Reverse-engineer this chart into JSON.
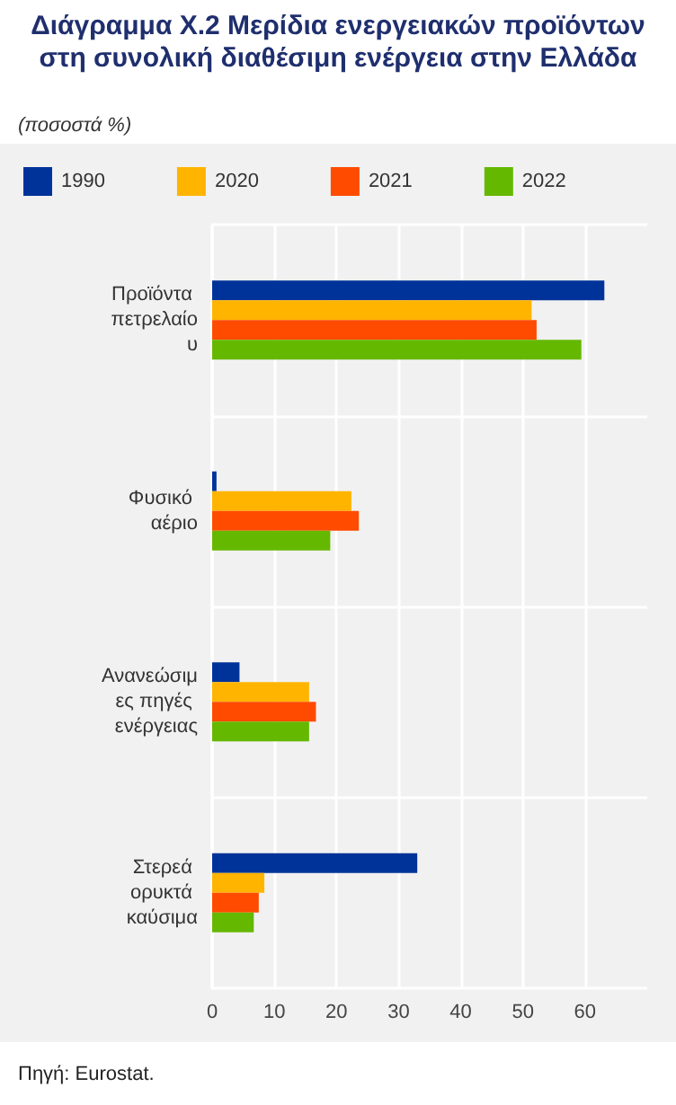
{
  "chart_data": {
    "type": "bar",
    "orientation": "horizontal",
    "title": "Διάγραμμα Χ.2 Μερίδια ενεργειακών προϊόντων στη συνολική διαθέσιμη ενέργεια στην Ελλάδα",
    "subtitle": "(ποσοστά %)",
    "categories": [
      "Προϊόντα πετρελαίου",
      "Φυσικό αέριο",
      "Ανανεώσιμες πηγές ενέργειας",
      "Στερεά ορυκτά καύσιμα"
    ],
    "series": [
      {
        "name": "1990",
        "color": "#003399",
        "values": [
          63.1,
          0.7,
          4.4,
          33.0
        ]
      },
      {
        "name": "2020",
        "color": "#ffb400",
        "values": [
          51.4,
          22.4,
          15.6,
          8.4
        ]
      },
      {
        "name": "2021",
        "color": "#ff4b00",
        "values": [
          52.2,
          23.6,
          16.7,
          7.5
        ]
      },
      {
        "name": "2022",
        "color": "#65b800",
        "values": [
          59.4,
          19.0,
          15.6,
          6.7
        ]
      }
    ],
    "xlim": [
      0,
      70
    ],
    "xticks": [
      0,
      10,
      20,
      30,
      40,
      50,
      60
    ],
    "grid": true,
    "legend": "top",
    "annotations": [
      "Πηγή: Eurostat."
    ]
  }
}
